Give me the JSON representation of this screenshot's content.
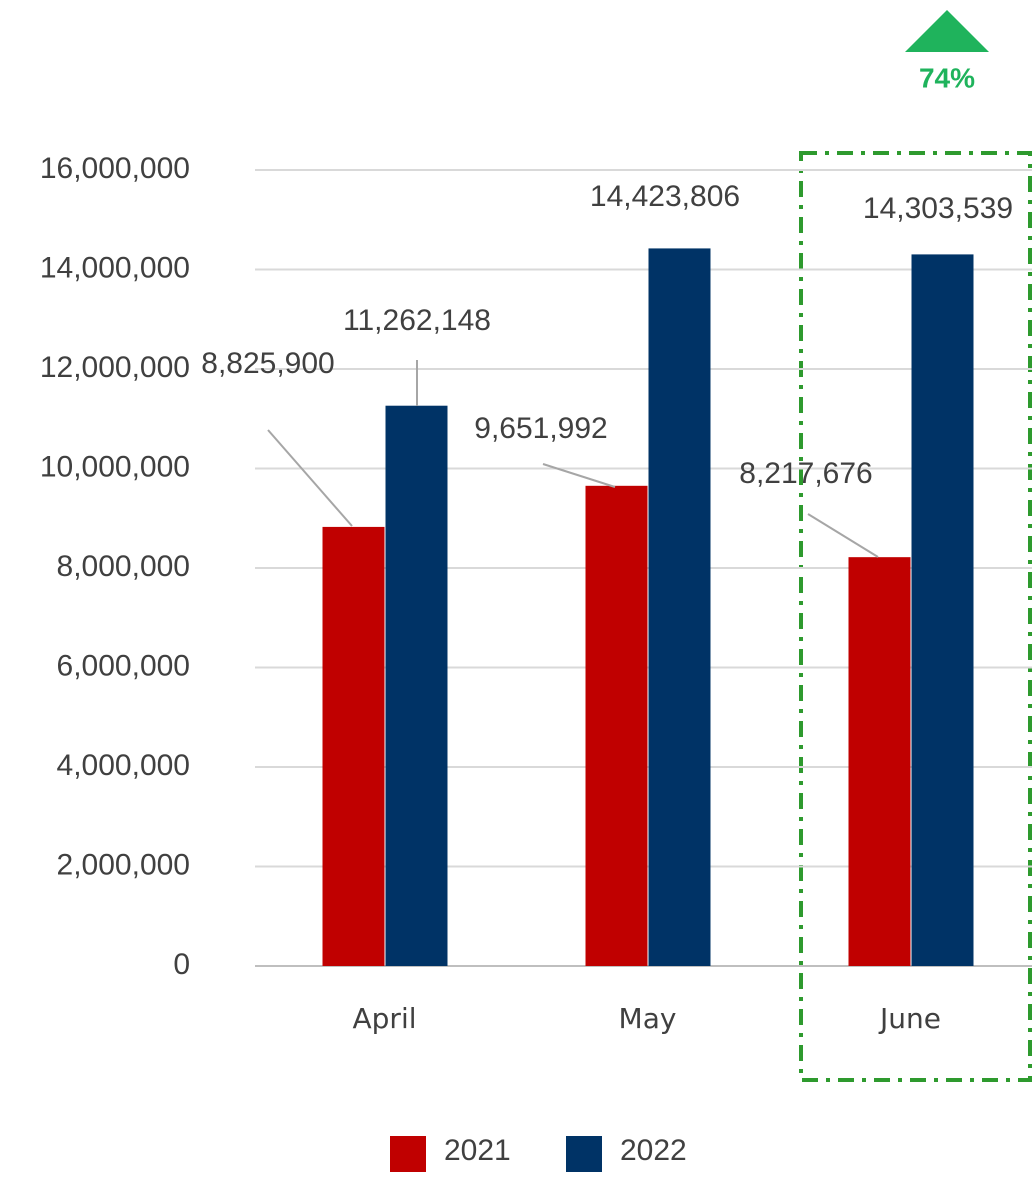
{
  "chart_data": {
    "type": "bar",
    "categories": [
      "April",
      "May",
      "June"
    ],
    "series": [
      {
        "name": "2021",
        "color": "#c00000",
        "values": [
          8825900,
          9651992,
          8217676
        ],
        "value_labels": [
          "8,825,900",
          "9,651,992",
          "8,217,676"
        ]
      },
      {
        "name": "2022",
        "color": "#003366",
        "values": [
          11262148,
          14423806,
          14303539
        ],
        "value_labels": [
          "11,262,148",
          "14,423,806",
          "14,303,539"
        ]
      }
    ],
    "ylim": [
      0,
      16000000
    ],
    "yticks": [
      0,
      {
        "value": 2000000,
        "label": "2,000,000"
      },
      {
        "value": 4000000,
        "label": "4,000,000"
      },
      {
        "value": 6000000,
        "label": "6,000,000"
      },
      {
        "value": 8000000,
        "label": "8,000,000"
      },
      {
        "value": 10000000,
        "label": "10,000,000"
      },
      {
        "value": 12000000,
        "label": "12,000,000"
      },
      {
        "value": 14000000,
        "label": "14,000,000"
      },
      {
        "value": 16000000,
        "label": "16,000,000"
      }
    ],
    "grid": true,
    "legend": "bottom",
    "annotation": "74%"
  }
}
